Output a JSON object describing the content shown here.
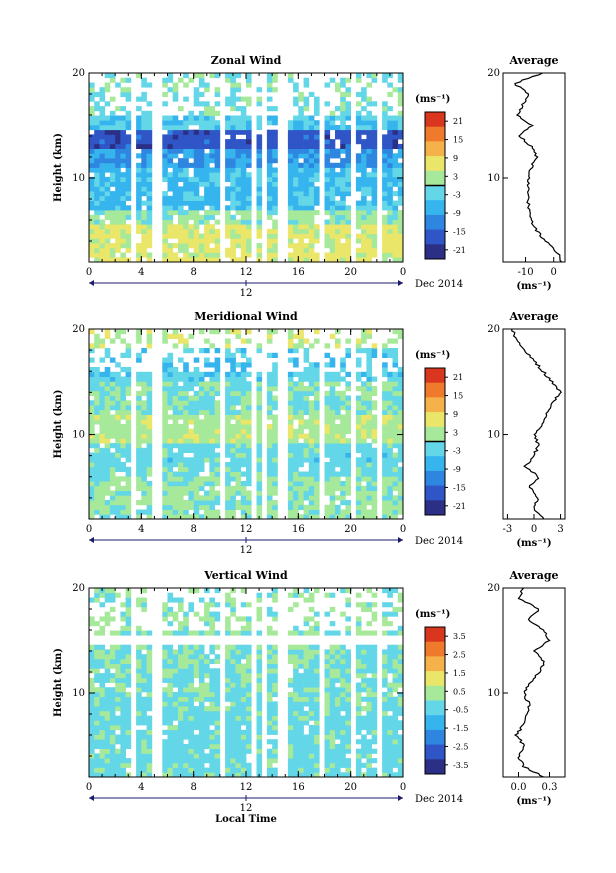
{
  "figure": {
    "date_label": "Dec 2014",
    "mid_day_label": "12",
    "xlabel": "Local Time",
    "avg_title": "Average",
    "unit": "(ms⁻¹)"
  },
  "chart_data": [
    {
      "type": "heatmap",
      "title": "Zonal Wind",
      "ylabel": "Height (km)",
      "yticks": [
        "10",
        "20"
      ],
      "ylim": [
        2,
        20
      ],
      "xticks": [
        "0",
        "4",
        "8",
        "12",
        "16",
        "20",
        "0"
      ],
      "xlim": [
        0,
        24
      ],
      "colorbar_ticks": [
        "21",
        "15",
        "9",
        "3",
        "-3",
        "-9",
        "-15",
        "-21"
      ],
      "colorbar_range": [
        -24,
        24
      ],
      "rows": [
        {
          "h": [
            2,
            5.5
          ],
          "v": 6
        },
        {
          "h": [
            5.5,
            7
          ],
          "v": 1
        },
        {
          "h": [
            7,
            11
          ],
          "v": -6
        },
        {
          "h": [
            11,
            13
          ],
          "v": -10
        },
        {
          "h": [
            13,
            14.5
          ],
          "v": -17
        },
        {
          "h": [
            14.5,
            16
          ],
          "v": -4
        },
        {
          "h": [
            16,
            20
          ],
          "v": -1
        }
      ],
      "gaps": [
        [
          3.2,
          3.6
        ],
        [
          4.9,
          5.4
        ],
        [
          10.1,
          10.5
        ],
        [
          12.4,
          12.8
        ],
        [
          13.3,
          13.7
        ],
        [
          14.5,
          15.2
        ],
        [
          17.5,
          17.9
        ],
        [
          20.1,
          20.5
        ],
        [
          22.2,
          22.5
        ]
      ],
      "average": {
        "xticks": [
          "-10",
          "0"
        ],
        "xlim": [
          -18,
          4
        ],
        "yticks": [
          "10",
          "20"
        ],
        "heights": [
          2,
          3,
          4,
          5,
          6,
          7,
          8,
          9,
          10,
          11,
          12,
          13,
          14,
          15,
          16,
          17,
          18,
          19,
          20
        ],
        "values": [
          3,
          1,
          -3,
          -6,
          -8,
          -9,
          -9,
          -9,
          -9,
          -8,
          -6,
          -8,
          -12,
          -8,
          -13,
          -11,
          -9,
          -14,
          -4
        ]
      }
    },
    {
      "type": "heatmap",
      "title": "Meridional Wind",
      "ylabel": "Height (km)",
      "yticks": [
        "10",
        "20"
      ],
      "ylim": [
        2,
        20
      ],
      "xticks": [
        "0",
        "4",
        "8",
        "12",
        "16",
        "20",
        "0"
      ],
      "xlim": [
        0,
        24
      ],
      "colorbar_ticks": [
        "21",
        "15",
        "9",
        "3",
        "-3",
        "-9",
        "-15",
        "-21"
      ],
      "colorbar_range": [
        -24,
        24
      ],
      "rows": [
        {
          "h": [
            2,
            6
          ],
          "v": 1
        },
        {
          "h": [
            6,
            9
          ],
          "v": -2
        },
        {
          "h": [
            9,
            12
          ],
          "v": 3
        },
        {
          "h": [
            12,
            15
          ],
          "v": 0
        },
        {
          "h": [
            15,
            18
          ],
          "v": -4
        },
        {
          "h": [
            18,
            20
          ],
          "v": 4
        }
      ],
      "gaps": [
        [
          3.2,
          3.6
        ],
        [
          4.9,
          5.4
        ],
        [
          10.1,
          10.5
        ],
        [
          12.4,
          12.8
        ],
        [
          13.3,
          13.7
        ],
        [
          14.5,
          15.2
        ],
        [
          17.5,
          17.9
        ],
        [
          20.1,
          20.5
        ],
        [
          22.2,
          22.5
        ]
      ],
      "average": {
        "xticks": [
          "-3",
          "0",
          "3"
        ],
        "xlim": [
          -3.5,
          3.5
        ],
        "yticks": [
          "10",
          "20"
        ],
        "heights": [
          2,
          3,
          4,
          5,
          6,
          7,
          8,
          9,
          10,
          11,
          12,
          13,
          14,
          15,
          16,
          17,
          18,
          19,
          20
        ],
        "values": [
          1,
          0,
          0.5,
          -0.5,
          0.5,
          -1,
          0,
          0.5,
          0,
          1,
          1.5,
          2,
          3,
          2,
          1,
          0,
          -1,
          -2,
          -2.5
        ]
      }
    },
    {
      "type": "heatmap",
      "title": "Vertical Wind",
      "ylabel": "Height (km)",
      "yticks": [
        "10",
        "20"
      ],
      "ylim": [
        2,
        20
      ],
      "xticks": [
        "0",
        "4",
        "8",
        "12",
        "16",
        "20",
        "0"
      ],
      "xlim": [
        0,
        24
      ],
      "colorbar_ticks": [
        "3.5",
        "2.5",
        "1.5",
        "0.5",
        "-0.5",
        "-1.5",
        "-2.5",
        "-3.5"
      ],
      "colorbar_range": [
        -4,
        4
      ],
      "rows": [
        {
          "h": [
            2,
            9
          ],
          "v": -0.3
        },
        {
          "h": [
            9,
            14.5
          ],
          "v": -0.1
        },
        {
          "h": [
            14.5,
            15.5
          ],
          "v": null
        },
        {
          "h": [
            15.5,
            20
          ],
          "v": 0.1
        }
      ],
      "gaps": [
        [
          3.2,
          3.6
        ],
        [
          4.9,
          5.4
        ],
        [
          10.1,
          10.5
        ],
        [
          12.4,
          12.8
        ],
        [
          13.3,
          13.7
        ],
        [
          14.5,
          15.2
        ],
        [
          17.5,
          17.9
        ],
        [
          20.1,
          20.5
        ],
        [
          22.2,
          22.5
        ]
      ],
      "average": {
        "xticks": [
          "0.0",
          "0.3"
        ],
        "xlim": [
          -0.15,
          0.45
        ],
        "yticks": [
          "10",
          "20"
        ],
        "heights": [
          2,
          3,
          4,
          5,
          6,
          7,
          8,
          9,
          10,
          11,
          12,
          13,
          14,
          15,
          16,
          17,
          18,
          19,
          20
        ],
        "values": [
          0.25,
          0.05,
          0.0,
          0.05,
          -0.02,
          0.05,
          0.08,
          0.1,
          0.05,
          0.12,
          0.2,
          0.25,
          0.15,
          0.3,
          0.25,
          0.1,
          0.2,
          0.0,
          0.05
        ]
      }
    }
  ]
}
